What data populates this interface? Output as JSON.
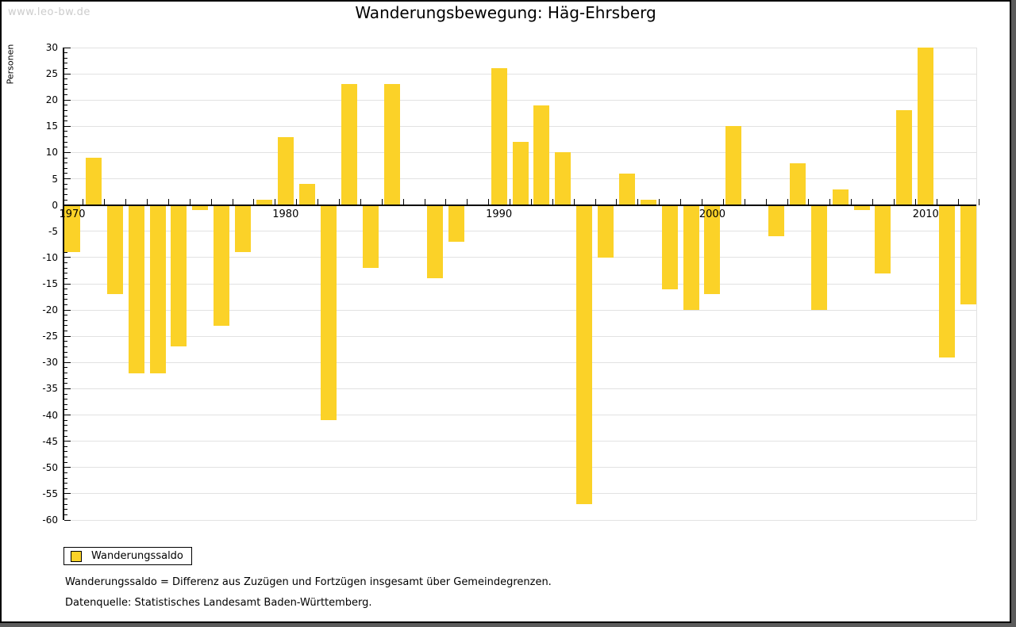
{
  "watermark": "www.leo-bw.de",
  "title": "Wanderungsbewegung: Häg-Ehrsberg",
  "chart_data": {
    "type": "bar",
    "title": "Wanderungsbewegung: Häg-Ehrsberg",
    "xlabel": "",
    "ylabel": "Personen",
    "ylim": [
      -60,
      30
    ],
    "grid": true,
    "legend_label": "Wanderungssaldo",
    "legend_position": "bottom-left",
    "y_ticks": [
      30,
      25,
      20,
      15,
      10,
      5,
      0,
      -5,
      -10,
      -15,
      -20,
      -25,
      -30,
      -35,
      -40,
      -45,
      -50,
      -55,
      -60
    ],
    "x_ticks": [
      1970,
      1980,
      1990,
      2000,
      2010
    ],
    "categories": [
      1970,
      1971,
      1972,
      1973,
      1974,
      1975,
      1976,
      1977,
      1978,
      1979,
      1980,
      1981,
      1982,
      1983,
      1984,
      1985,
      1986,
      1987,
      1988,
      1989,
      1990,
      1991,
      1992,
      1993,
      1994,
      1995,
      1996,
      1997,
      1998,
      1999,
      2000,
      2001,
      2002,
      2003,
      2004,
      2005,
      2006,
      2007,
      2008,
      2009,
      2010,
      2011,
      2012
    ],
    "values": [
      -9,
      9,
      -17,
      -32,
      -32,
      -27,
      -1,
      -23,
      -9,
      1,
      13,
      4,
      -41,
      23,
      -12,
      23,
      0,
      -14,
      -7,
      0,
      26,
      12,
      19,
      10,
      -57,
      -10,
      6,
      1,
      -16,
      -20,
      -17,
      15,
      0,
      -6,
      8,
      -20,
      3,
      -1,
      -13,
      18,
      30,
      -29,
      -19
    ]
  },
  "colors": {
    "bar": "#FBD228",
    "grid": "#e2e2e2",
    "axis": "#000000",
    "watermark": "#cccccc",
    "frame_shadow": "#5b5b5b"
  },
  "footnotes": [
    "Wanderungssaldo = Differenz aus Zuzügen und Fortzügen insgesamt über Gemeindegrenzen.",
    "Datenquelle: Statistisches Landesamt Baden-Württemberg."
  ]
}
